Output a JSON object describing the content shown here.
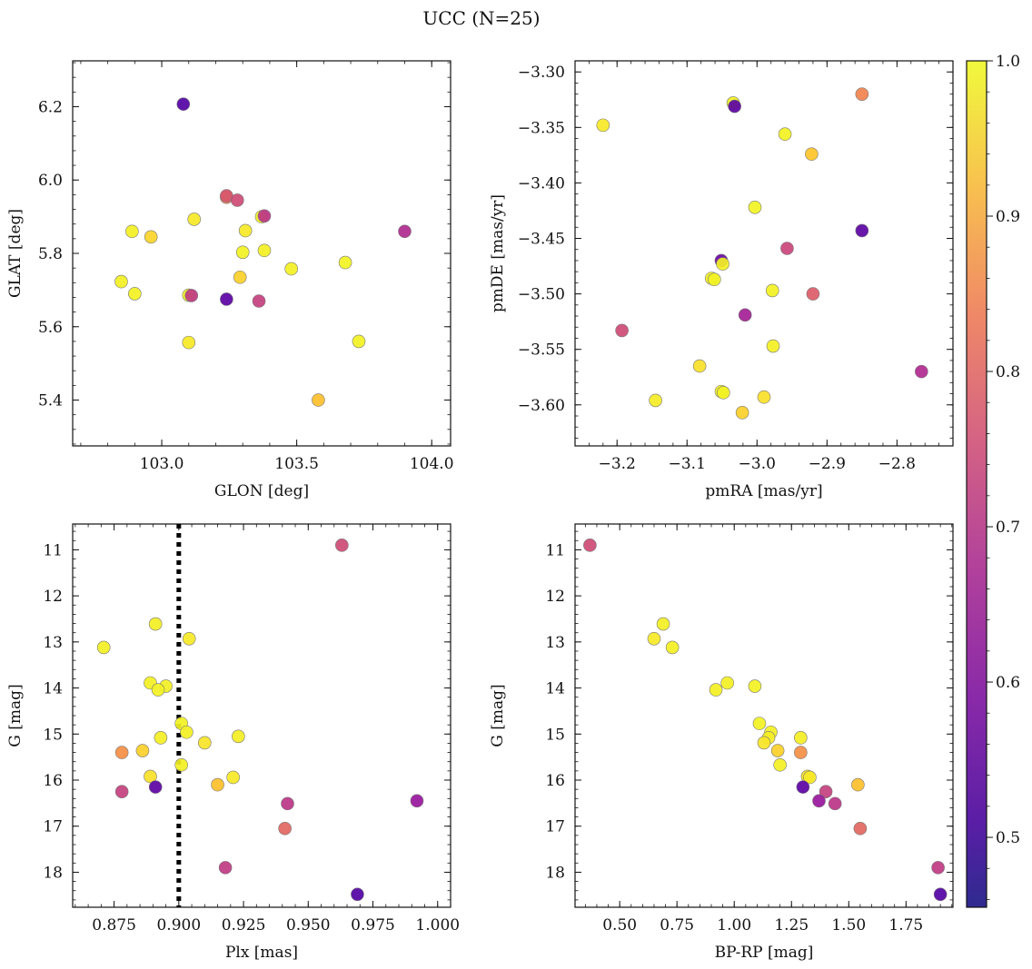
{
  "figure": {
    "title": "UCC (N=25)"
  },
  "colorbar": {
    "range": [
      0.455,
      1.0
    ],
    "ticks": [
      0.5,
      0.6,
      0.7,
      0.8,
      0.9,
      1.0
    ],
    "tick_labels": [
      "0.5",
      "0.6",
      "0.7",
      "0.8",
      "0.9",
      "1.0"
    ],
    "colormap": "plasma"
  },
  "chart_data": [
    {
      "type": "scatter",
      "xlabel": "GLON [deg]",
      "ylabel": "GLAT [deg]",
      "xlim": [
        102.67,
        104.07
      ],
      "ylim": [
        5.275,
        6.325
      ],
      "xticks": [
        103.0,
        103.5,
        104.0
      ],
      "xtick_labels": [
        "103.0",
        "103.5",
        "104.0"
      ],
      "yticks": [
        5.4,
        5.6,
        5.8,
        6.0,
        6.2
      ],
      "ytick_labels": [
        "5.4",
        "5.6",
        "5.8",
        "6.0",
        "6.2"
      ],
      "x": [
        103.08,
        103.24,
        103.24,
        103.28,
        103.37,
        103.38,
        103.12,
        102.89,
        102.96,
        103.9,
        103.31,
        103.3,
        103.38,
        103.68,
        103.48,
        103.29,
        102.85,
        102.9,
        103.1,
        103.11,
        103.24,
        103.36,
        103.1,
        103.73,
        103.58
      ],
      "y": [
        6.207,
        5.953,
        5.957,
        5.945,
        5.9,
        5.902,
        5.893,
        5.86,
        5.845,
        5.86,
        5.862,
        5.803,
        5.808,
        5.775,
        5.758,
        5.735,
        5.723,
        5.69,
        5.686,
        5.685,
        5.675,
        5.67,
        5.557,
        5.56,
        5.4
      ],
      "c": [
        0.46,
        0.75,
        0.68,
        0.66,
        0.96,
        0.62,
        0.93,
        0.96,
        0.89,
        0.6,
        0.93,
        0.97,
        0.96,
        0.98,
        0.96,
        0.88,
        0.96,
        0.97,
        0.97,
        0.63,
        0.47,
        0.64,
        0.93,
        0.97,
        0.85
      ]
    },
    {
      "type": "scatter",
      "xlabel": "pmRA [mas/yr]",
      "ylabel": "pmDE [mas/yr]",
      "xlim": [
        -3.26,
        -2.72
      ],
      "ylim": [
        -3.637,
        -3.29
      ],
      "xticks": [
        -3.2,
        -3.1,
        -3.0,
        -2.9,
        -2.8
      ],
      "xtick_labels": [
        "−3.2",
        "−3.1",
        "−3.0",
        "−2.9",
        "−2.8"
      ],
      "yticks": [
        -3.3,
        -3.35,
        -3.4,
        -3.45,
        -3.5,
        -3.55,
        -3.6
      ],
      "ytick_labels": [
        "−3.30",
        "−3.35",
        "−3.40",
        "−3.45",
        "−3.50",
        "−3.55",
        "−3.60"
      ],
      "x": [
        -2.85,
        -3.034,
        -3.032,
        -3.22,
        -2.96,
        -2.922,
        -3.003,
        -2.85,
        -2.957,
        -3.051,
        -3.049,
        -3.065,
        -3.061,
        -2.978,
        -2.92,
        -3.017,
        -3.193,
        -2.977,
        -2.765,
        -3.082,
        -3.051,
        -3.048,
        -3.145,
        -2.99,
        -3.021
      ],
      "y": [
        -3.32,
        -3.328,
        -3.331,
        -3.348,
        -3.356,
        -3.374,
        -3.422,
        -3.443,
        -3.459,
        -3.47,
        -3.473,
        -3.486,
        -3.487,
        -3.497,
        -3.5,
        -3.519,
        -3.533,
        -3.547,
        -3.57,
        -3.565,
        -3.588,
        -3.589,
        -3.596,
        -3.593,
        -3.607
      ],
      "c": [
        0.76,
        0.96,
        0.47,
        0.93,
        0.97,
        0.86,
        0.98,
        0.47,
        0.65,
        0.49,
        0.96,
        0.96,
        0.97,
        0.97,
        0.69,
        0.58,
        0.66,
        0.96,
        0.6,
        0.91,
        0.96,
        0.97,
        0.94,
        0.91,
        0.88
      ]
    },
    {
      "type": "scatter",
      "xlabel": "Plx [mas]",
      "ylabel": "G [mag]",
      "xlim": [
        0.859,
        1.005
      ],
      "ylim": [
        18.76,
        10.44
      ],
      "inverted_y": true,
      "vline": 0.9,
      "xticks": [
        0.875,
        0.9,
        0.925,
        0.95,
        0.975,
        1.0
      ],
      "xtick_labels": [
        "0.875",
        "0.900",
        "0.925",
        "0.950",
        "0.975",
        "1.000"
      ],
      "yticks": [
        11,
        12,
        13,
        14,
        15,
        16,
        17,
        18
      ],
      "ytick_labels": [
        "11",
        "12",
        "13",
        "14",
        "15",
        "16",
        "17",
        "18"
      ],
      "x": [
        0.963,
        0.891,
        0.904,
        0.871,
        0.889,
        0.895,
        0.892,
        0.901,
        0.903,
        0.893,
        0.923,
        0.91,
        0.878,
        0.886,
        0.889,
        0.901,
        0.921,
        0.915,
        0.878,
        0.891,
        0.942,
        0.992,
        0.941,
        0.918,
        0.969
      ],
      "y": [
        10.9,
        12.61,
        12.93,
        13.12,
        13.89,
        13.96,
        14.04,
        14.77,
        14.96,
        15.08,
        15.05,
        15.19,
        15.4,
        15.36,
        15.92,
        15.67,
        15.94,
        16.1,
        16.25,
        16.15,
        16.51,
        16.45,
        17.05,
        17.9,
        18.48
      ],
      "c": [
        0.66,
        0.96,
        0.93,
        0.96,
        0.96,
        0.96,
        0.97,
        0.97,
        0.96,
        0.95,
        0.95,
        0.92,
        0.78,
        0.88,
        0.91,
        0.96,
        0.93,
        0.85,
        0.64,
        0.47,
        0.62,
        0.56,
        0.71,
        0.63,
        0.46
      ]
    },
    {
      "type": "scatter",
      "xlabel": "BP-RP [mag]",
      "ylabel": "G [mag]",
      "xlim": [
        0.305,
        1.955
      ],
      "ylim": [
        18.76,
        10.44
      ],
      "inverted_y": true,
      "xticks": [
        0.5,
        0.75,
        1.0,
        1.25,
        1.5,
        1.75
      ],
      "xtick_labels": [
        "0.50",
        "0.75",
        "1.00",
        "1.25",
        "1.50",
        "1.75"
      ],
      "yticks": [
        11,
        12,
        13,
        14,
        15,
        16,
        17,
        18
      ],
      "ytick_labels": [
        "11",
        "12",
        "13",
        "14",
        "15",
        "16",
        "17",
        "18"
      ],
      "x": [
        0.37,
        0.69,
        0.65,
        0.73,
        0.97,
        0.92,
        1.09,
        1.11,
        1.16,
        1.15,
        1.29,
        1.13,
        1.29,
        1.19,
        1.32,
        1.2,
        1.33,
        1.54,
        1.4,
        1.3,
        1.44,
        1.37,
        1.55,
        1.89,
        1.9
      ],
      "y": [
        10.9,
        12.61,
        12.93,
        13.12,
        13.89,
        14.04,
        13.96,
        14.77,
        14.96,
        15.08,
        15.08,
        15.19,
        15.4,
        15.36,
        15.92,
        15.67,
        15.94,
        16.1,
        16.25,
        16.15,
        16.51,
        16.45,
        17.05,
        17.9,
        18.48
      ],
      "c": [
        0.66,
        0.96,
        0.93,
        0.96,
        0.96,
        0.96,
        0.97,
        0.97,
        0.96,
        0.95,
        0.95,
        0.92,
        0.78,
        0.88,
        0.91,
        0.96,
        0.93,
        0.85,
        0.64,
        0.47,
        0.62,
        0.56,
        0.71,
        0.63,
        0.46
      ]
    }
  ]
}
